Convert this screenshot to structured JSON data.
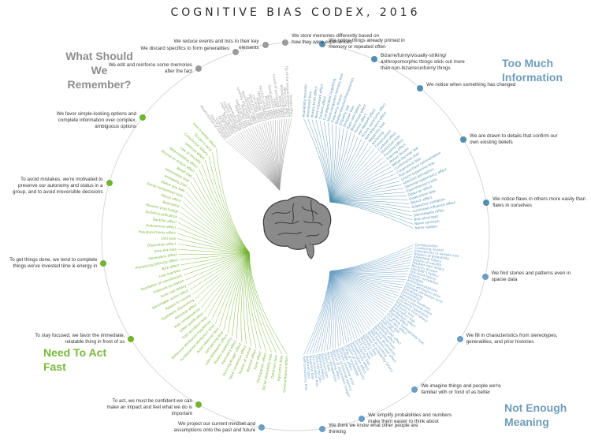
{
  "title": "COGNITIVE BIAS CODEX, 2016",
  "quadrants": {
    "top_left": "What Should We Remember?",
    "top_right": "Too Much Information",
    "bottom_left": "Need To Act Fast",
    "bottom_right": "Not Enough Meaning"
  },
  "colors": {
    "memory": "#9a9a9a",
    "info": "#4f8fb0",
    "action": "#72b32f",
    "meaning": "#6a9ec4",
    "circle": "#d7d7d7"
  },
  "brain_icon": "brain-icon",
  "categories": [
    {
      "text": "We notice things already primed in memory or repeated often",
      "group": "info"
    },
    {
      "text": "Bizarre/funny/visually-striking/ anthropomorphic things stick out more than non-bizarre/unfunny things",
      "group": "info"
    },
    {
      "text": "We notice when something has changed",
      "group": "info"
    },
    {
      "text": "We are drawn to details that confirm our own existing beliefs",
      "group": "info"
    },
    {
      "text": "We notice flaws in others more easily than flaws in ourselves",
      "group": "info"
    },
    {
      "text": "We find stories and patterns even in sparse data",
      "group": "meaning"
    },
    {
      "text": "We fill in characteristics from stereotypes, generalities, and prior histories",
      "group": "meaning"
    },
    {
      "text": "We imagine things and people we're familiar with or fond of as better",
      "group": "meaning"
    },
    {
      "text": "We simplify probabilities and numbers make them easier to think about",
      "group": "meaning"
    },
    {
      "text": "We think we know what other people are thinking",
      "group": "meaning"
    },
    {
      "text": "We project our current mindset and assumptions onto the past and future",
      "group": "meaning"
    },
    {
      "text": "To act, we must be confident we can make an impact and feel what we do is important",
      "group": "action"
    },
    {
      "text": "To stay focused, we favor the immediate, relatable thing in front of us",
      "group": "action"
    },
    {
      "text": "To get things done, we tend to complete things we've invested time & energy in",
      "group": "action"
    },
    {
      "text": "To avoid mistakes, we're motivated to preserve our autonomy and status in a group, and to avoid irreversible decisions",
      "group": "action"
    },
    {
      "text": "We favor simple-looking options and complete information over complex, ambiguous options",
      "group": "action"
    },
    {
      "text": "We edit and reinforce some memories after the fact",
      "group": "memory"
    },
    {
      "text": "We discard specifics to form generalities",
      "group": "memory"
    },
    {
      "text": "We reduce events and lists to their key elements",
      "group": "memory"
    },
    {
      "text": "We store memories differently based on how they were experienced",
      "group": "memory"
    }
  ],
  "biases": {
    "info": [
      "Availability heuristic",
      "Attentional bias",
      "Illusory truth effect",
      "Mere exposure effect",
      "Context effect",
      "Cue-dependent forgetting",
      "Mood-congruent memory bias",
      "Frequency illusion",
      "Baader-Meinhof Phenomenon",
      "Empathy gap",
      "Omission bias",
      "Base rate fallacy",
      "Bizarreness effect",
      "Humor effect",
      "Von Restorff effect",
      "Picture superiority effect",
      "Self-relevance effect",
      "Negativity bias",
      "Anchoring",
      "Conservatism",
      "Contrast effect",
      "Distinction bias",
      "Focusing effect",
      "Framing effect",
      "Money illusion",
      "Weber-Fechner law",
      "Confirmation bias",
      "Congruence bias",
      "Post-purchase rationalization",
      "Choice-supportive bias",
      "Selective perception",
      "Observer-expectancy effect",
      "Experimenter's bias",
      "Observer effect",
      "Expectation bias",
      "Ostrich effect",
      "Subjective validation",
      "Continued influence effect",
      "Semmelweis reflex",
      "Bias blind spot",
      "Naive cynicism",
      "Naive realism"
    ],
    "meaning": [
      "Confabulation",
      "Clustering illusion",
      "Insensitivity to sample size",
      "Neglect of probability",
      "Anecdotal fallacy",
      "Illusion of validity",
      "Masked man fallacy",
      "Recency illusion",
      "Gambler's fallacy",
      "Hot-hand fallacy",
      "Illusory correlation",
      "Pareidolia",
      "Anthropomorphism",
      "Group attribution error",
      "Ultimate attribution error",
      "Stereotyping",
      "Essentialism",
      "Functional fixedness",
      "Moral credential effect",
      "Just-world hypothesis",
      "Argument from fallacy",
      "Authority bias",
      "Automation bias",
      "Bandwagon effect",
      "Placebo effect",
      "Out-group homogeneity bias",
      "Cross-race effect",
      "In-group bias",
      "Halo effect",
      "Cheerleader effect",
      "Positivity effect",
      "Not invented here",
      "Reactive devaluation",
      "Well-traveled road effect",
      "Mental accounting",
      "Appeal to probability fallacy",
      "Normalcy bias",
      "Murphy's Law",
      "Zero sum bias",
      "Survivorship bias",
      "Subadditivity effect",
      "Denomination effect",
      "Illusion of transparency",
      "Curse of knowledge",
      "Spotlight effect",
      "Extrinsic incentive error",
      "Illusion of external agency",
      "Illusion of asymmetric insight",
      "Telescoping effect",
      "Rosy retrospection",
      "Impact bias",
      "Pessimism bias",
      "Planning fallacy",
      "Time-saving bias",
      "Pro-innovation bias",
      "Projection bias",
      "Restraint bias",
      "Self-consistency bias"
    ],
    "action": [
      "Overconfidence effect",
      "Egocentric bias",
      "Optimism bias",
      "Social desirability bias",
      "Third-person effect",
      "Forer effect",
      "Barnum effect",
      "Illusion of control",
      "False consensus effect",
      "Dunning-Kruger effect",
      "Hard-easy effect",
      "Illusory superiority",
      "Lake Wobegone effect",
      "Self-serving bias",
      "Actor-observer bias",
      "Fundamental attribution error",
      "Defensive attribution hypothesis",
      "Trait ascription bias",
      "Effort justification",
      "Risk compensation",
      "Peltzman effect",
      "Hyperbolic discounting",
      "Appeal to novelty",
      "Identifiable victim effect",
      "Sunk cost fallacy",
      "Irrational escalation",
      "Escalation of commitment",
      "Loss aversion",
      "IKEA effect",
      "Processing difficulty effect",
      "Generation effect",
      "Zero-risk bias",
      "Disposition effect",
      "Unit bias",
      "Pseudocertainty effect",
      "Endowment effect",
      "Backfire effect",
      "System justification",
      "Reverse psychology",
      "Reactance",
      "Decoy effect",
      "Social comparison bias",
      "Status quo bias",
      "Ambiguity bias",
      "Information bias",
      "Belief bias",
      "Rhyme as reason effect",
      "Bike-shedding effect",
      "Law of Triviality",
      "Delmore effect",
      "Conjunction fallacy",
      "Occam's razor",
      "Less-is-better effect"
    ],
    "memory": [
      "Misattribution of memory",
      "Source confusion",
      "Cryptomnesia",
      "False memory",
      "Suggestibility",
      "Spacing effect",
      "Implicit associations",
      "Implicit stereotypes",
      "Stereotypical bias",
      "Prejudice",
      "Negativity bias",
      "Fading affect bias",
      "Peak-end rule",
      "Leveling and sharpening",
      "Misinformation effect",
      "Duration neglect",
      "Serial recall effect",
      "List-length effect",
      "Modality effect",
      "Memory inhibition",
      "Part-list cueing effect",
      "Primacy effect",
      "Recency effect",
      "Serial position effect",
      "Suffix effect",
      "Levels of processing effect",
      "Testing effect",
      "Absent-mindedness",
      "Next-in-line effect",
      "Tip of the tongue phenomenon",
      "Google effect"
    ]
  }
}
